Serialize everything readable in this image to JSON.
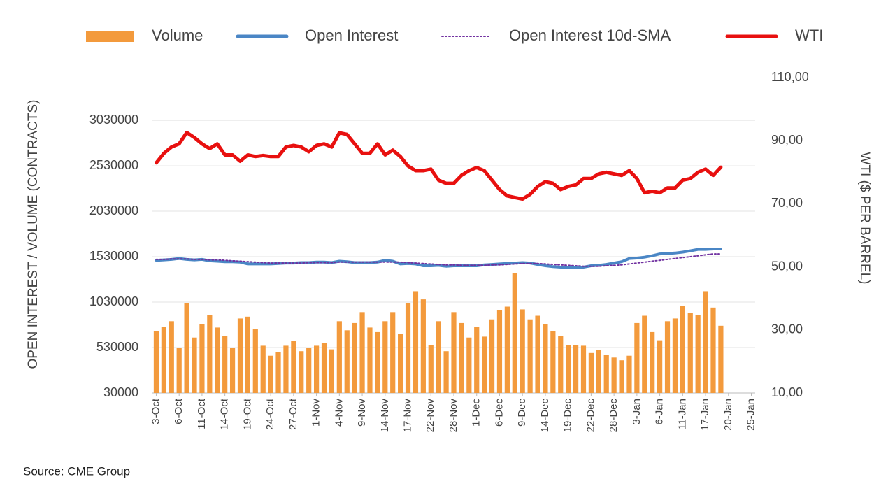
{
  "chart_data": {
    "type": "combo",
    "legend_position": "top",
    "grid": true,
    "y_label": "OPEN INTEREST / VOLUME (CONTRACTS)",
    "y2_label": "WTI ($ PER BARREL)",
    "source": "Source: CME Group",
    "categories": [
      "3-Oct",
      null,
      null,
      "6-Oct",
      null,
      null,
      "11-Oct",
      null,
      null,
      "14-Oct",
      null,
      null,
      "19-Oct",
      null,
      null,
      "24-Oct",
      null,
      null,
      "27-Oct",
      null,
      null,
      "1-Nov",
      null,
      null,
      "4-Nov",
      null,
      null,
      "9-Nov",
      null,
      null,
      "14-Nov",
      null,
      null,
      "17-Nov",
      null,
      null,
      "22-Nov",
      null,
      null,
      "28-Nov",
      null,
      null,
      "1-Dec",
      null,
      null,
      "6-Dec",
      null,
      null,
      "9-Dec",
      null,
      null,
      "14-Dec",
      null,
      null,
      "19-Dec",
      null,
      null,
      "22-Dec",
      null,
      null,
      "28-Dec",
      null,
      null,
      "3-Jan",
      null,
      null,
      "6-Jan",
      null,
      null,
      "11-Jan",
      null,
      null,
      "17-Jan",
      null,
      null,
      "20-Jan",
      null,
      null,
      "25-Jan"
    ],
    "ylim": [
      30000,
      3500000
    ],
    "yticks": [
      30000,
      530000,
      1030000,
      1530000,
      2030000,
      2530000,
      3030000
    ],
    "y2lim": [
      10,
      110
    ],
    "y2ticks": [
      {
        "value": 10,
        "label": "10,00"
      },
      {
        "value": 30,
        "label": "30,00"
      },
      {
        "value": 50,
        "label": "50,00"
      },
      {
        "value": 70,
        "label": "70,00"
      },
      {
        "value": 90,
        "label": "90,00"
      },
      {
        "value": 110,
        "label": "110,00"
      }
    ],
    "series": [
      {
        "name": "Volume",
        "type": "bar",
        "color": "#f39a3c",
        "values": [
          710000,
          760000,
          820000,
          530000,
          1020000,
          640000,
          790000,
          890000,
          750000,
          660000,
          530000,
          850000,
          870000,
          730000,
          550000,
          440000,
          480000,
          550000,
          600000,
          490000,
          530000,
          550000,
          580000,
          510000,
          820000,
          720000,
          800000,
          920000,
          750000,
          700000,
          820000,
          920000,
          680000,
          1020000,
          1150000,
          1060000,
          560000,
          820000,
          490000,
          920000,
          800000,
          640000,
          760000,
          650000,
          840000,
          940000,
          980000,
          1350000,
          950000,
          840000,
          880000,
          790000,
          710000,
          660000,
          560000,
          560000,
          550000,
          470000,
          500000,
          450000,
          420000,
          390000,
          440000,
          800000,
          880000,
          700000,
          610000,
          820000,
          850000,
          990000,
          910000,
          890000,
          1150000,
          970000,
          770000,
          null,
          null,
          null,
          null
        ]
      },
      {
        "name": "Open Interest",
        "type": "line",
        "color": "#4a86c5",
        "values": [
          1490000,
          1495000,
          1500000,
          1510000,
          1500000,
          1495000,
          1500000,
          1485000,
          1480000,
          1475000,
          1475000,
          1470000,
          1450000,
          1450000,
          1450000,
          1450000,
          1455000,
          1460000,
          1460000,
          1465000,
          1465000,
          1470000,
          1470000,
          1465000,
          1480000,
          1475000,
          1465000,
          1465000,
          1465000,
          1470000,
          1490000,
          1480000,
          1450000,
          1455000,
          1450000,
          1430000,
          1430000,
          1435000,
          1425000,
          1430000,
          1430000,
          1430000,
          1430000,
          1440000,
          1445000,
          1450000,
          1455000,
          1460000,
          1465000,
          1460000,
          1445000,
          1430000,
          1420000,
          1415000,
          1410000,
          1410000,
          1415000,
          1430000,
          1435000,
          1445000,
          1460000,
          1475000,
          1510000,
          1515000,
          1525000,
          1540000,
          1560000,
          1565000,
          1570000,
          1580000,
          1595000,
          1610000,
          1610000,
          1615000,
          1615000,
          null,
          null,
          null,
          null
        ]
      },
      {
        "name": "Open Interest 10d-SMA",
        "type": "line",
        "dotted": true,
        "color": "#7030a0",
        "values": [
          1500000,
          1500000,
          1505000,
          1505000,
          1505000,
          1500000,
          1500000,
          1495000,
          1495000,
          1490000,
          1485000,
          1480000,
          1475000,
          1470000,
          1465000,
          1460000,
          1460000,
          1460000,
          1460000,
          1460000,
          1465000,
          1465000,
          1465000,
          1465000,
          1470000,
          1470000,
          1470000,
          1470000,
          1470000,
          1470000,
          1470000,
          1470000,
          1470000,
          1465000,
          1460000,
          1455000,
          1450000,
          1445000,
          1440000,
          1440000,
          1435000,
          1435000,
          1435000,
          1435000,
          1440000,
          1440000,
          1445000,
          1450000,
          1455000,
          1455000,
          1455000,
          1450000,
          1445000,
          1440000,
          1435000,
          1430000,
          1425000,
          1425000,
          1425000,
          1430000,
          1435000,
          1440000,
          1450000,
          1460000,
          1470000,
          1480000,
          1490000,
          1500000,
          1510000,
          1520000,
          1530000,
          1540000,
          1550000,
          1560000,
          1560000,
          null,
          null,
          null,
          null
        ]
      },
      {
        "name": "WTI",
        "type": "line",
        "axis": "y2",
        "color": "#e8100f",
        "values": [
          83,
          86,
          88,
          89,
          92.6,
          91,
          89,
          87.5,
          89,
          85.5,
          85.5,
          83.5,
          85.5,
          85,
          85.3,
          85,
          85,
          88,
          88.5,
          88,
          86.5,
          88.5,
          89,
          88,
          92.5,
          92,
          89,
          86,
          86,
          89,
          85.5,
          87,
          85,
          82,
          80.5,
          80.5,
          81,
          77.5,
          76.5,
          76.5,
          79,
          80.5,
          81.5,
          80.5,
          77.5,
          74.5,
          72.5,
          72,
          71.5,
          73,
          75.5,
          77,
          76.5,
          74.5,
          75.5,
          76,
          78,
          78,
          79.5,
          80,
          79.5,
          79,
          80.5,
          78,
          73.5,
          74,
          73.5,
          75,
          75,
          77.5,
          78,
          80,
          81,
          79,
          81.6,
          null,
          null,
          null,
          null
        ]
      }
    ]
  }
}
